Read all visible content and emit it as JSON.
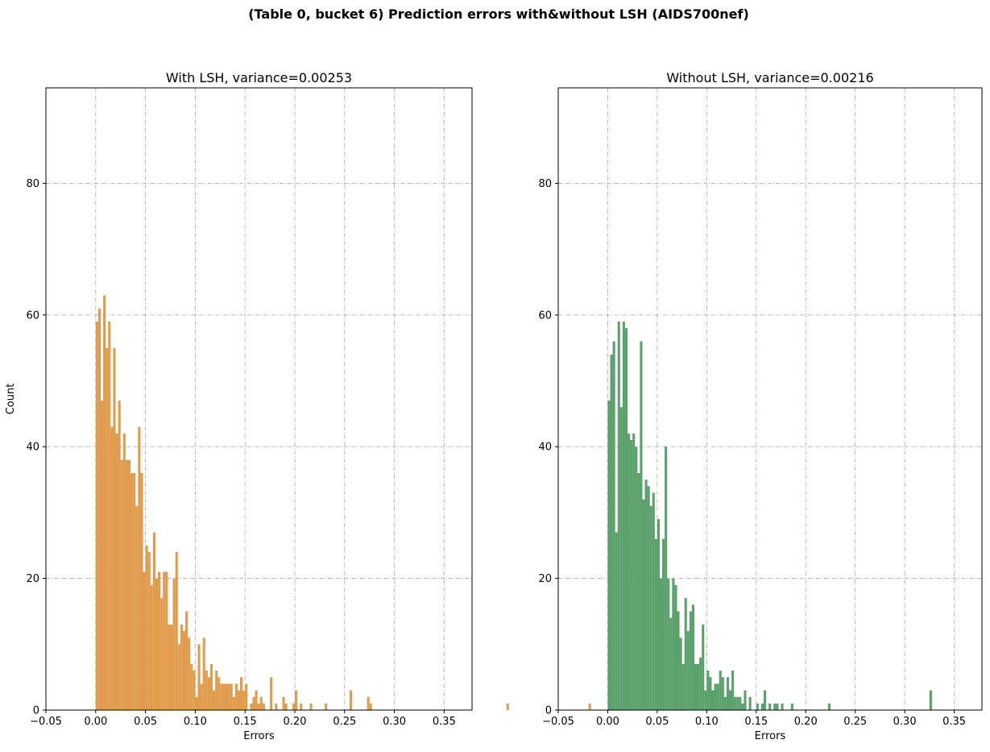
{
  "suptitle": "(Table 0, bucket 6) Prediction errors with&without LSH (AIDS700nef)",
  "chart_data": [
    {
      "type": "histogram",
      "title": "With LSH, variance=0.00253",
      "xlabel": "Errors",
      "ylabel": "Count",
      "color": "#e09c4c",
      "xlim": [
        -0.05,
        0.378
      ],
      "ylim": [
        0,
        94.5
      ],
      "xticks": [
        -0.05,
        0.0,
        0.05,
        0.1,
        0.15,
        0.2,
        0.25,
        0.3,
        0.35
      ],
      "xtick_labels": [
        "−0.05",
        "0.00",
        "0.05",
        "0.10",
        "0.15",
        "0.20",
        "0.25",
        "0.30",
        "0.35"
      ],
      "yticks": [
        0,
        20,
        40,
        60,
        80
      ],
      "ytick_labels": [
        "0",
        "20",
        "40",
        "60",
        "80"
      ],
      "grid": true,
      "bin_start": 0.0,
      "bin_width": 0.0025,
      "counts": [
        59,
        61,
        47,
        63,
        55,
        59,
        43,
        55,
        42,
        47,
        38,
        42,
        38,
        38,
        36,
        36,
        31,
        43,
        36,
        21,
        25,
        24,
        19,
        27,
        20,
        21,
        17,
        21,
        21,
        13,
        13,
        20,
        24,
        10,
        13,
        12,
        15,
        11,
        7,
        6,
        2,
        10,
        4,
        11,
        6,
        5,
        7,
        3,
        6,
        5,
        4,
        4,
        4,
        4,
        4,
        2,
        4,
        3,
        5,
        3,
        4,
        0,
        1,
        2,
        3,
        1,
        2,
        1,
        0,
        0,
        5,
        0,
        1,
        0,
        0,
        2,
        1,
        0,
        0,
        1,
        3,
        0,
        1,
        0,
        0,
        0,
        1,
        0,
        0,
        0,
        0,
        0,
        1,
        0,
        0,
        0,
        0,
        0,
        0,
        0,
        0,
        0,
        3,
        0,
        0,
        0,
        0,
        0,
        0,
        2,
        1,
        0,
        0,
        0,
        0,
        0,
        0,
        0,
        0,
        0,
        0,
        0,
        0,
        0,
        0,
        0,
        0,
        0,
        0,
        0,
        0,
        0,
        0,
        0,
        0,
        0,
        0,
        0,
        0,
        0,
        0,
        0,
        0,
        0,
        0,
        0,
        0,
        0,
        0,
        0,
        0,
        0,
        0,
        0,
        0,
        0,
        0,
        0,
        0,
        0,
        0,
        0,
        0,
        0,
        0,
        1,
        0,
        0,
        0,
        0,
        0,
        0,
        0,
        0,
        0,
        0,
        0,
        0,
        0,
        0,
        0,
        0,
        0,
        0,
        0,
        0,
        0,
        0,
        0,
        0,
        0,
        0,
        0,
        0,
        0,
        0,
        0,
        0,
        1
      ]
    },
    {
      "type": "histogram",
      "title": "Without LSH, variance=0.00216",
      "xlabel": "Errors",
      "ylabel": "",
      "color": "#5aa06a",
      "xlim": [
        -0.05,
        0.378
      ],
      "ylim": [
        0,
        94.5
      ],
      "xticks": [
        -0.05,
        0.0,
        0.05,
        0.1,
        0.15,
        0.2,
        0.25,
        0.3,
        0.35
      ],
      "xtick_labels": [
        "−0.05",
        "0.00",
        "0.05",
        "0.10",
        "0.15",
        "0.20",
        "0.25",
        "0.30",
        "0.35"
      ],
      "yticks": [
        0,
        20,
        40,
        60,
        80
      ],
      "ytick_labels": [
        "0",
        "20",
        "40",
        "60",
        "80"
      ],
      "grid": true,
      "bin_start": 0.0,
      "bin_width": 0.0025,
      "counts": [
        47,
        54,
        56,
        27,
        59,
        46,
        59,
        58,
        42,
        41,
        42,
        40,
        36,
        56,
        32,
        35,
        34,
        31,
        33,
        26,
        29,
        20,
        26,
        40,
        20,
        14,
        20,
        19,
        15,
        11,
        7,
        17,
        12,
        15,
        16,
        7,
        7,
        8,
        13,
        3,
        6,
        5,
        3,
        4,
        4,
        6,
        5,
        2,
        5,
        3,
        6,
        2,
        2,
        2,
        1,
        3,
        0,
        2,
        0,
        0,
        1,
        0,
        1,
        3,
        0,
        1,
        0,
        1,
        1,
        0,
        1,
        0,
        0,
        0,
        1,
        0,
        0,
        0,
        0,
        0,
        0,
        0,
        0,
        0,
        0,
        0,
        0,
        0,
        0,
        1,
        0,
        0,
        0,
        0,
        0,
        0,
        0,
        0,
        0,
        0,
        0,
        0,
        0,
        0,
        0,
        0,
        0,
        0,
        0,
        0,
        0,
        0,
        0,
        0,
        0,
        0,
        0,
        0,
        0,
        0,
        0,
        0,
        0,
        0,
        0,
        0,
        0,
        0,
        0,
        0,
        3
      ]
    }
  ]
}
